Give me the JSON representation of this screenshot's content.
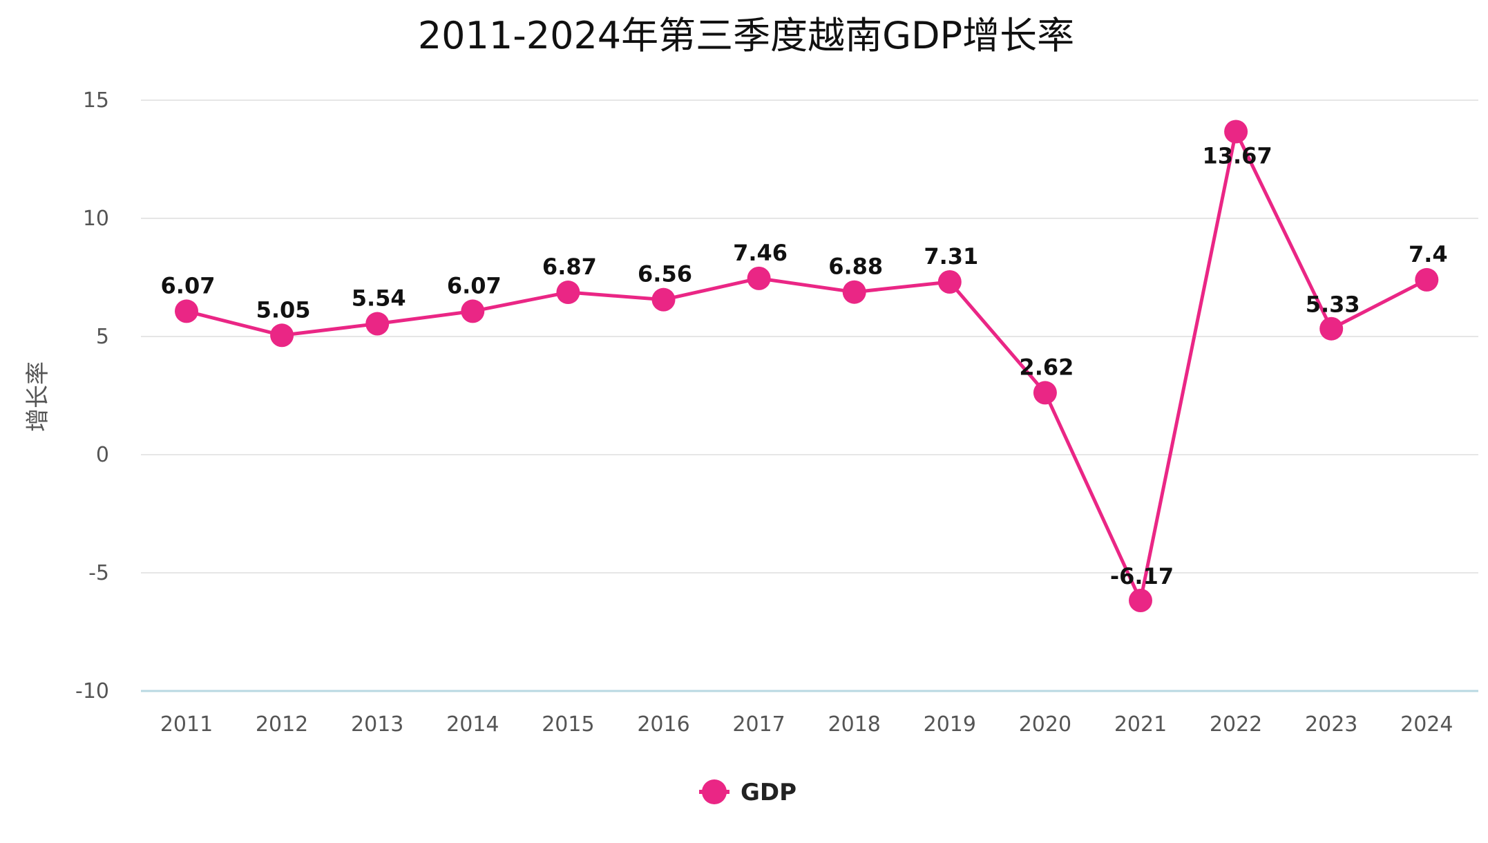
{
  "chart_data": {
    "type": "line",
    "title": "2011-2024年第三季度越南GDP增长率",
    "xlabel": "",
    "ylabel": "增长率",
    "x": [
      "2011",
      "2012",
      "2013",
      "2014",
      "2015",
      "2016",
      "2017",
      "2018",
      "2019",
      "2020",
      "2021",
      "2022",
      "2023",
      "2024"
    ],
    "series": [
      {
        "name": "GDP",
        "values": [
          6.07,
          5.05,
          5.54,
          6.07,
          6.87,
          6.56,
          7.46,
          6.88,
          7.31,
          2.62,
          -6.17,
          13.67,
          5.33,
          7.4
        ],
        "labels": [
          "6.07",
          "5.05",
          "5.54",
          "6.07",
          "6.87",
          "6.56",
          "7.46",
          "6.88",
          "7.31",
          "2.62",
          "-6.17",
          "13.67",
          "5.33",
          "7.4"
        ]
      }
    ],
    "y_ticks": [
      "-10",
      "-5",
      "0",
      "5",
      "10",
      "15"
    ],
    "ylim": [
      -10,
      15
    ],
    "grid": true,
    "legend_position": "bottom-center",
    "colors": {
      "series": "#ea2685",
      "grid": "#e6e6e6",
      "baseline": "#b8d8e2"
    }
  }
}
